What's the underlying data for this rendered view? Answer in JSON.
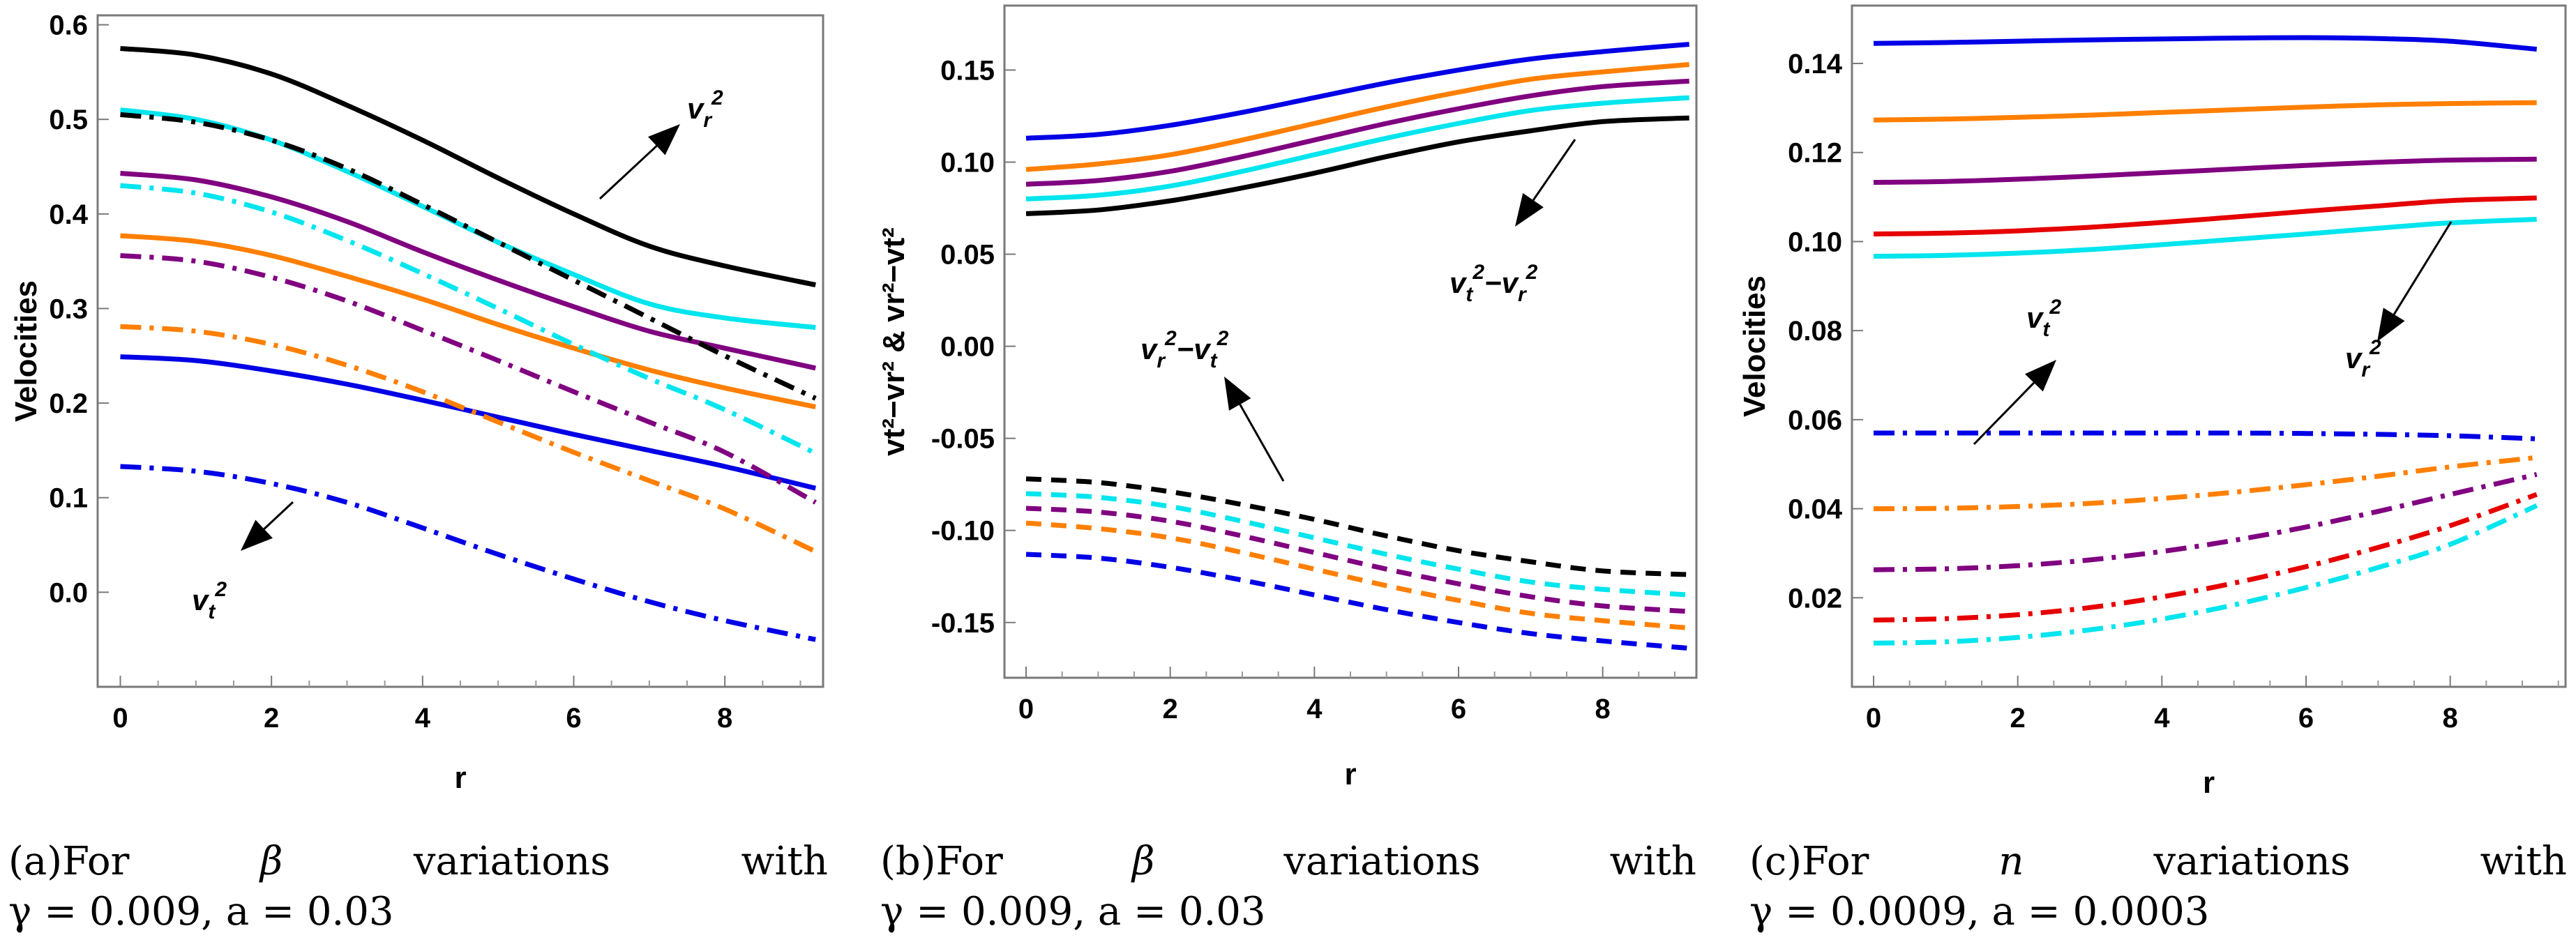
{
  "figure": {
    "captions": [
      {
        "label": "(a)For",
        "param": "β",
        "word": "variations",
        "with": "with",
        "line2": "γ = 0.009,  a = 0.03"
      },
      {
        "label": "(b)For",
        "param": "β",
        "word": "variations",
        "with": "with",
        "line2": "γ = 0.009,  a = 0.03"
      },
      {
        "label": "(c)For",
        "param": "n",
        "word": "variations",
        "with": "with",
        "line2": "γ = 0.0009,  a = 0.0003"
      }
    ]
  },
  "chart_data": [
    {
      "type": "line",
      "xlabel": "r",
      "ylabel": "Velocities",
      "xlim": [
        -0.3,
        9.3
      ],
      "ylim": [
        -0.1,
        0.61
      ],
      "xticks": [
        "0",
        "2",
        "4",
        "6",
        "8"
      ],
      "yticks": [
        "0.0",
        "0.1",
        "0.2",
        "0.3",
        "0.4",
        "0.5",
        "0.6"
      ],
      "annotations": [
        {
          "base": "v",
          "sub": "r",
          "sup": "2"
        },
        {
          "base": "v",
          "sub": "t",
          "sup": "2"
        }
      ],
      "x": [
        0,
        1,
        2,
        3,
        4,
        5,
        6,
        7,
        8,
        9.2
      ],
      "series": [
        {
          "color": "#000000",
          "style": "solid",
          "values": [
            0.575,
            0.568,
            0.548,
            0.515,
            0.478,
            0.438,
            0.4,
            0.366,
            0.345,
            0.325
          ]
        },
        {
          "color": "#00e5ee",
          "style": "solid",
          "values": [
            0.51,
            0.5,
            0.478,
            0.445,
            0.408,
            0.37,
            0.336,
            0.305,
            0.29,
            0.28
          ]
        },
        {
          "color": "#800080",
          "style": "solid",
          "values": [
            0.443,
            0.436,
            0.418,
            0.392,
            0.36,
            0.33,
            0.302,
            0.276,
            0.258,
            0.237
          ]
        },
        {
          "color": "#ff7f00",
          "style": "solid",
          "values": [
            0.377,
            0.371,
            0.356,
            0.334,
            0.31,
            0.283,
            0.258,
            0.235,
            0.216,
            0.196
          ]
        },
        {
          "color": "#0000e6",
          "style": "solid",
          "values": [
            0.249,
            0.245,
            0.234,
            0.22,
            0.203,
            0.185,
            0.167,
            0.15,
            0.133,
            0.11
          ]
        },
        {
          "color": "#000000",
          "style": "dashdot",
          "values": [
            0.505,
            0.497,
            0.478,
            0.448,
            0.41,
            0.37,
            0.33,
            0.29,
            0.25,
            0.205
          ]
        },
        {
          "color": "#00e5ee",
          "style": "dashdot",
          "values": [
            0.43,
            0.422,
            0.402,
            0.372,
            0.337,
            0.3,
            0.262,
            0.226,
            0.193,
            0.147
          ]
        },
        {
          "color": "#800080",
          "style": "dashdot",
          "values": [
            0.356,
            0.35,
            0.333,
            0.308,
            0.277,
            0.245,
            0.212,
            0.18,
            0.148,
            0.095
          ]
        },
        {
          "color": "#ff7f00",
          "style": "dashdot",
          "values": [
            0.281,
            0.276,
            0.262,
            0.24,
            0.212,
            0.18,
            0.148,
            0.118,
            0.088,
            0.043
          ]
        },
        {
          "color": "#0000e6",
          "style": "dashdot",
          "values": [
            0.133,
            0.128,
            0.115,
            0.095,
            0.068,
            0.04,
            0.014,
            -0.01,
            -0.03,
            -0.05
          ]
        }
      ]
    },
    {
      "type": "line",
      "xlabel": "r",
      "ylabel": "vt²−vr² & vr²−vt²",
      "xlim": [
        -0.3,
        9.3
      ],
      "ylim": [
        -0.18,
        0.185
      ],
      "xticks": [
        "0",
        "2",
        "4",
        "6",
        "8"
      ],
      "yticks": [
        "-0.15",
        "-0.10",
        "-0.05",
        "0.00",
        "0.05",
        "0.10",
        "0.15"
      ],
      "annotations": [
        {
          "a": "t",
          "b": "r"
        },
        {
          "a": "r",
          "b": "t"
        }
      ],
      "x": [
        0,
        1,
        2,
        3,
        4,
        5,
        6,
        7,
        8,
        9.2
      ],
      "series": [
        {
          "color": "#0000e6",
          "style": "solid",
          "values": [
            0.113,
            0.115,
            0.12,
            0.127,
            0.135,
            0.143,
            0.15,
            0.156,
            0.16,
            0.164
          ]
        },
        {
          "color": "#ff7f00",
          "style": "solid",
          "values": [
            0.096,
            0.099,
            0.104,
            0.112,
            0.121,
            0.13,
            0.138,
            0.145,
            0.149,
            0.153
          ]
        },
        {
          "color": "#800080",
          "style": "solid",
          "values": [
            0.088,
            0.09,
            0.095,
            0.103,
            0.112,
            0.121,
            0.129,
            0.136,
            0.141,
            0.144
          ]
        },
        {
          "color": "#00e5ee",
          "style": "solid",
          "values": [
            0.08,
            0.082,
            0.087,
            0.095,
            0.104,
            0.113,
            0.121,
            0.128,
            0.132,
            0.135
          ]
        },
        {
          "color": "#000000",
          "style": "solid",
          "values": [
            0.072,
            0.074,
            0.079,
            0.086,
            0.094,
            0.103,
            0.111,
            0.117,
            0.122,
            0.124
          ]
        },
        {
          "color": "#000000",
          "style": "dashed",
          "values": [
            -0.072,
            -0.074,
            -0.079,
            -0.086,
            -0.094,
            -0.103,
            -0.111,
            -0.117,
            -0.122,
            -0.124
          ]
        },
        {
          "color": "#00e5ee",
          "style": "dashed",
          "values": [
            -0.08,
            -0.082,
            -0.087,
            -0.095,
            -0.104,
            -0.113,
            -0.121,
            -0.128,
            -0.132,
            -0.135
          ]
        },
        {
          "color": "#800080",
          "style": "dashed",
          "values": [
            -0.088,
            -0.09,
            -0.095,
            -0.103,
            -0.112,
            -0.121,
            -0.129,
            -0.136,
            -0.141,
            -0.144
          ]
        },
        {
          "color": "#ff7f00",
          "style": "dashed",
          "values": [
            -0.096,
            -0.099,
            -0.104,
            -0.112,
            -0.121,
            -0.13,
            -0.138,
            -0.145,
            -0.149,
            -0.153
          ]
        },
        {
          "color": "#0000e6",
          "style": "dashed",
          "values": [
            -0.113,
            -0.115,
            -0.12,
            -0.127,
            -0.135,
            -0.143,
            -0.15,
            -0.156,
            -0.16,
            -0.164
          ]
        }
      ]
    },
    {
      "type": "line",
      "xlabel": "r",
      "ylabel": "Velocities",
      "xlim": [
        -0.3,
        9.6
      ],
      "ylim": [
        0.0,
        0.153
      ],
      "xticks": [
        "0",
        "2",
        "4",
        "6",
        "8"
      ],
      "yticks": [
        "0.02",
        "0.04",
        "0.06",
        "0.08",
        "0.10",
        "0.12",
        "0.14"
      ],
      "annotations": [
        {
          "base": "v",
          "sub": "t",
          "sup": "2"
        },
        {
          "base": "v",
          "sub": "r",
          "sup": "2"
        }
      ],
      "x": [
        0,
        1,
        2,
        3,
        4,
        5,
        6,
        7,
        8,
        9.2
      ],
      "series": [
        {
          "color": "#0000e6",
          "style": "solid",
          "values": [
            0.1445,
            0.1447,
            0.145,
            0.1453,
            0.1455,
            0.1457,
            0.1458,
            0.1456,
            0.145,
            0.1432
          ]
        },
        {
          "color": "#ff7f00",
          "style": "solid",
          "values": [
            0.1273,
            0.1275,
            0.1279,
            0.1284,
            0.129,
            0.1296,
            0.1302,
            0.1307,
            0.131,
            0.1312
          ]
        },
        {
          "color": "#800080",
          "style": "solid",
          "values": [
            0.1133,
            0.1135,
            0.114,
            0.1147,
            0.1155,
            0.1163,
            0.1171,
            0.1178,
            0.1183,
            0.1185
          ]
        },
        {
          "color": "#e60000",
          "style": "solid",
          "values": [
            0.1017,
            0.1019,
            0.1024,
            0.1032,
            0.1043,
            0.1055,
            0.1068,
            0.108,
            0.1092,
            0.1098
          ]
        },
        {
          "color": "#00e5ee",
          "style": "solid",
          "values": [
            0.0967,
            0.0969,
            0.0974,
            0.0982,
            0.0993,
            0.1005,
            0.1017,
            0.103,
            0.1042,
            0.105
          ]
        },
        {
          "color": "#0000e6",
          "style": "dashdot",
          "values": [
            0.057,
            0.057,
            0.057,
            0.057,
            0.057,
            0.057,
            0.0569,
            0.0567,
            0.0564,
            0.0557
          ]
        },
        {
          "color": "#ff7f00",
          "style": "dashdot",
          "values": [
            0.04,
            0.0401,
            0.0405,
            0.0412,
            0.0423,
            0.0437,
            0.0454,
            0.0473,
            0.0494,
            0.0515
          ]
        },
        {
          "color": "#800080",
          "style": "dashdot",
          "values": [
            0.0263,
            0.0265,
            0.0272,
            0.0285,
            0.0304,
            0.0329,
            0.0359,
            0.0394,
            0.0432,
            0.0477
          ]
        },
        {
          "color": "#e60000",
          "style": "dashdot",
          "values": [
            0.015,
            0.0153,
            0.0162,
            0.0178,
            0.0202,
            0.0233,
            0.027,
            0.0313,
            0.0362,
            0.0432
          ]
        },
        {
          "color": "#00e5ee",
          "style": "dashdot",
          "values": [
            0.0098,
            0.0101,
            0.0111,
            0.0128,
            0.0152,
            0.0184,
            0.0223,
            0.0268,
            0.032,
            0.0407
          ]
        }
      ]
    }
  ]
}
